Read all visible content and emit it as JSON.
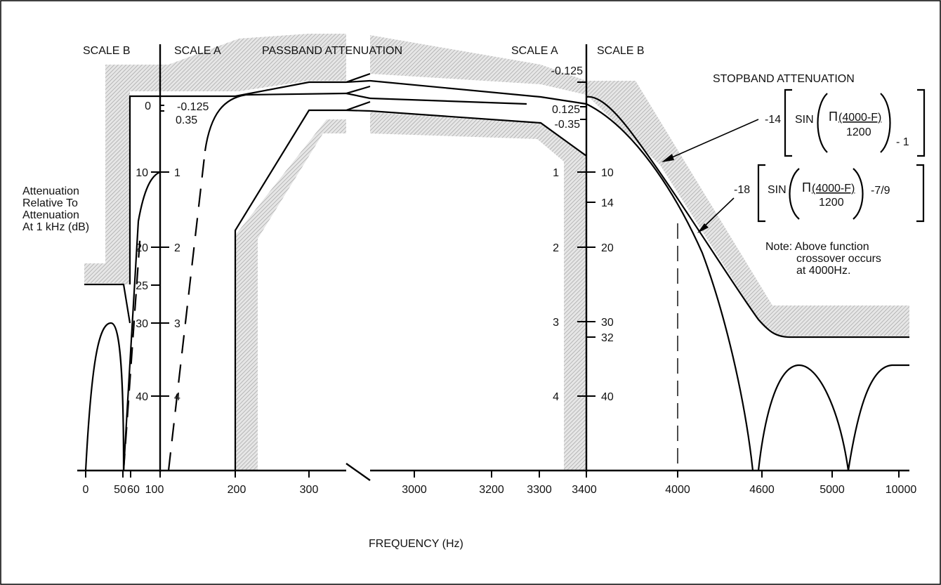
{
  "chart_data": {
    "type": "line",
    "title": "",
    "headings": {
      "scale_b_left": "SCALE B",
      "scale_a_left": "SCALE A",
      "passband": "PASSBAND ATTENUATION",
      "scale_a_right": "SCALE A",
      "scale_b_right": "SCALE B",
      "stopband": "STOPBAND ATTENUATION"
    },
    "ylabel": [
      "Attenuation",
      "Relative To",
      "Attenuation",
      "At 1 kHz (dB)"
    ],
    "xlabel": "FREQUENCY (Hz)",
    "x_ticks": [
      "0",
      "50",
      "60",
      "100",
      "200",
      "300",
      "3000",
      "3200",
      "3300",
      "3400",
      "4000",
      "4600",
      "5000",
      "10000"
    ],
    "left_scale_b_ticks": [
      "0",
      "10",
      "20",
      "25",
      "30",
      "40"
    ],
    "left_scale_a_ticks": [
      "-0.125",
      "0.35",
      "1",
      "2",
      "3",
      "4"
    ],
    "right_scale_a_ticks": [
      "-0.125",
      "0.125",
      "-0.35",
      "1",
      "2",
      "3",
      "4"
    ],
    "right_scale_b_ticks": [
      "10",
      "14",
      "20",
      "30",
      "32",
      "40"
    ],
    "formula1": {
      "coef": "-14",
      "func": "SIN",
      "pi": "Π",
      "numerator": "(4000-F)",
      "denominator": "1200",
      "tail": "- 1"
    },
    "formula2": {
      "coef": "-18",
      "func": "SIN",
      "pi": "Π",
      "numerator": "(4000-F)",
      "denominator": "1200",
      "tail": "-7/9"
    },
    "note": [
      "Note: Above function",
      "crossover occurs",
      "at 4000Hz."
    ],
    "colors": {
      "curve": "#000000",
      "mask": "#c8c8c8"
    }
  }
}
